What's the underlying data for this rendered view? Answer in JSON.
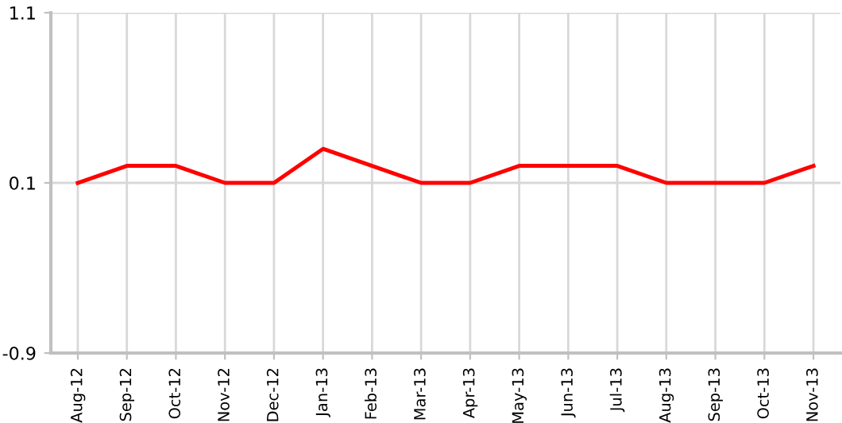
{
  "chart_data": {
    "type": "line",
    "categories": [
      "Aug-12",
      "Sep-12",
      "Oct-12",
      "Nov-12",
      "Dec-12",
      "Jan-13",
      "Feb-13",
      "Mar-13",
      "Apr-13",
      "May-13",
      "Jun-13",
      "Jul-13",
      "Aug-13",
      "Sep-13",
      "Oct-13",
      "Nov-13"
    ],
    "series": [
      {
        "color": "#ff0000",
        "values": [
          0.1,
          0.2,
          0.2,
          0.1,
          0.1,
          0.3,
          0.2,
          0.1,
          0.1,
          0.2,
          0.2,
          0.2,
          0.1,
          0.1,
          0.1,
          0.2
        ]
      }
    ],
    "ylim": [
      -0.9,
      1.1
    ],
    "yticks": [
      -0.9,
      0.1,
      1.1
    ],
    "grid": true,
    "marker": "none",
    "line_style": "solid",
    "legend": false
  }
}
